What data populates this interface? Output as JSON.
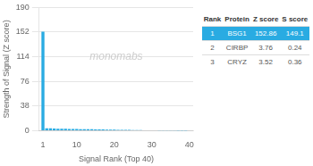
{
  "chart_data": {
    "type": "bar",
    "x": [
      1,
      2,
      3,
      4,
      5,
      6,
      7,
      8,
      9,
      10,
      11,
      12,
      13,
      14,
      15,
      16,
      17,
      18,
      19,
      20,
      21,
      22,
      23,
      24,
      25,
      26,
      27,
      28,
      29,
      30,
      31,
      32,
      33,
      34,
      35,
      36,
      37,
      38,
      39,
      40
    ],
    "values": [
      152.86,
      3.76,
      3.52,
      3.2,
      3.1,
      2.9,
      2.8,
      2.7,
      2.6,
      2.5,
      2.4,
      2.3,
      2.2,
      2.1,
      2.0,
      1.9,
      1.8,
      1.7,
      1.6,
      1.5,
      1.4,
      1.3,
      1.2,
      1.1,
      1.0,
      0.9,
      0.8,
      0.7,
      0.6,
      0.5,
      0.4,
      0.3,
      0.2,
      0.1,
      0.05,
      0.04,
      0.03,
      0.02,
      0.01,
      0.0
    ],
    "color": "#29abe2",
    "xlabel": "Signal Rank (Top 40)",
    "ylabel": "Strength of Signal (Z score)",
    "xlim": [
      0,
      41
    ],
    "ylim": [
      0,
      190
    ],
    "xticks": [
      1,
      10,
      20,
      30,
      40
    ],
    "yticks": [
      0,
      38,
      76,
      114,
      152,
      190
    ],
    "grid": true,
    "annotations": [
      "monomabs"
    ],
    "table": {
      "headers": [
        "Rank",
        "Protein",
        "Z score",
        "S score"
      ],
      "rows": [
        [
          "1",
          "BSG1",
          "152.86",
          "149.1"
        ],
        [
          "2",
          "CIRBP",
          "3.76",
          "0.24"
        ],
        [
          "3",
          "CRYZ",
          "3.52",
          "0.36"
        ]
      ]
    }
  }
}
